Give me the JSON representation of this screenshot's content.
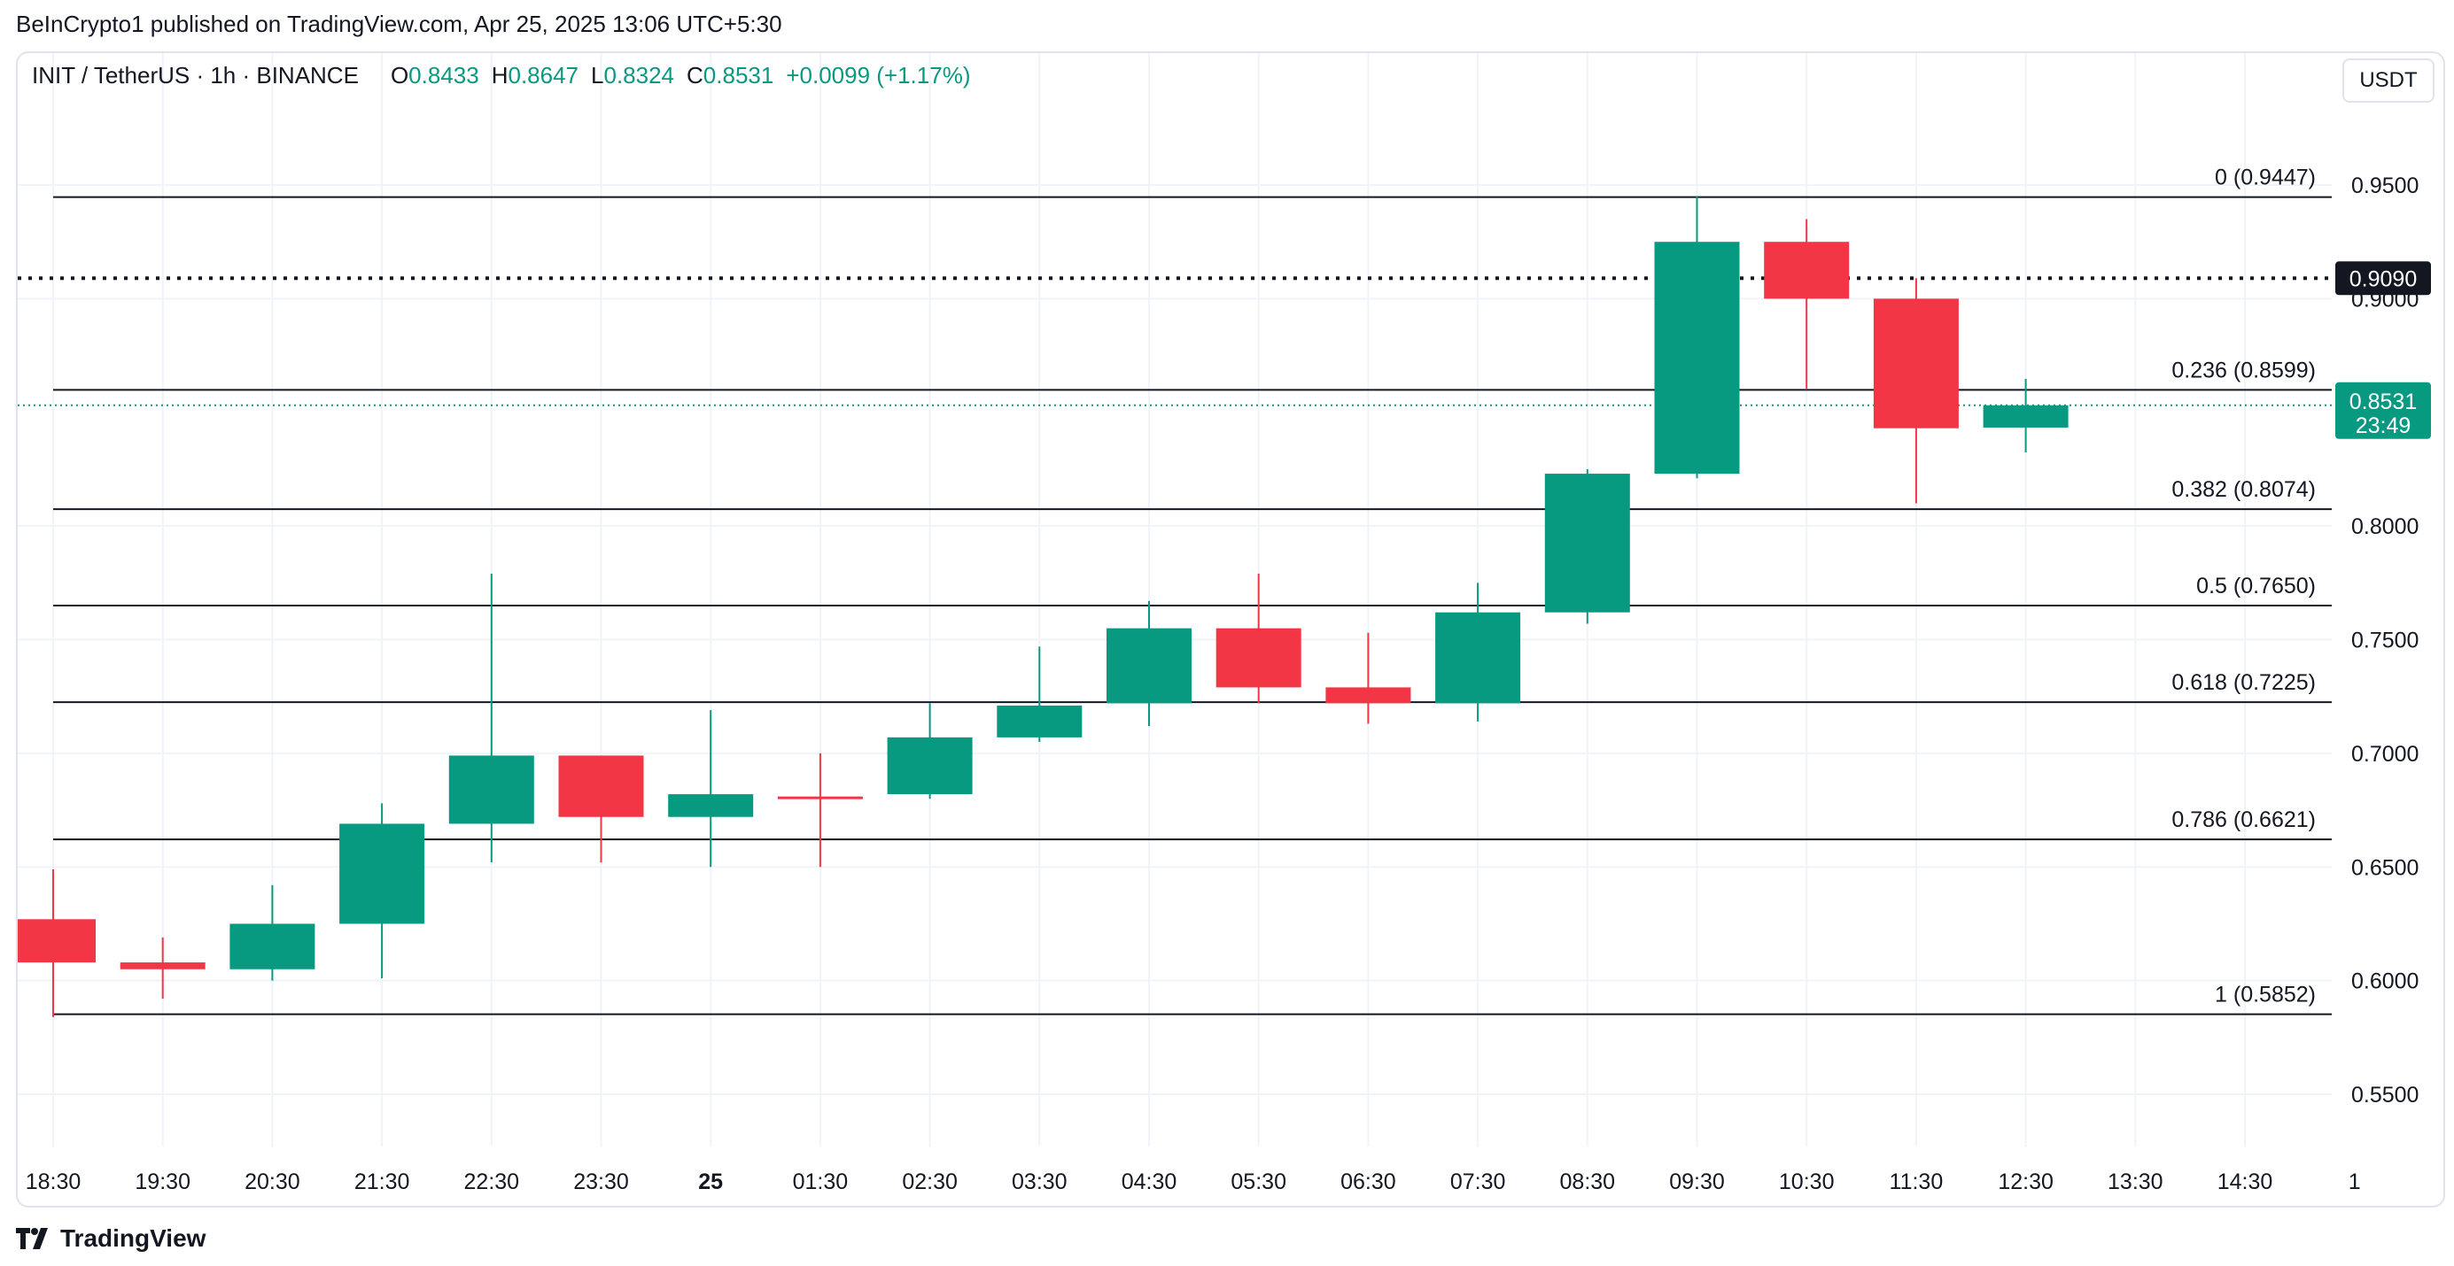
{
  "header": {
    "published": "BeInCrypto1 published on TradingView.com, Apr 25, 2025 13:06 UTC+5:30"
  },
  "legend": {
    "symbol": "INIT / TetherUS · 1h · BINANCE",
    "open_label": "O",
    "open": "0.8433",
    "high_label": "H",
    "high": "0.8647",
    "low_label": "L",
    "low": "0.8324",
    "close_label": "C",
    "close": "0.8531",
    "change": "+0.0099 (+1.17%)"
  },
  "currency_button": "USDT",
  "logo_text": "TradingView",
  "colors": {
    "up": "#089981",
    "down": "#f23645",
    "fib": "#131722",
    "grid": "#f0f3fa"
  },
  "chart_data": {
    "type": "candlestick",
    "yrange": [
      0.52,
      0.98
    ],
    "y_ticks": [
      "0.9500",
      "0.9000",
      "0.8000",
      "0.7500",
      "0.7000",
      "0.6500",
      "0.6000",
      "0.5500"
    ],
    "x_ticks": [
      "18:30",
      "19:30",
      "20:30",
      "21:30",
      "22:30",
      "23:30",
      "25",
      "01:30",
      "02:30",
      "03:30",
      "04:30",
      "05:30",
      "06:30",
      "07:30",
      "08:30",
      "09:30",
      "10:30",
      "11:30",
      "12:30",
      "13:30",
      "14:30",
      "1"
    ],
    "candles": [
      {
        "x": "18:30",
        "open": 0.627,
        "high": 0.649,
        "low": 0.584,
        "close": 0.608
      },
      {
        "x": "19:30",
        "open": 0.608,
        "high": 0.619,
        "low": 0.592,
        "close": 0.605
      },
      {
        "x": "20:30",
        "open": 0.605,
        "high": 0.642,
        "low": 0.6,
        "close": 0.625
      },
      {
        "x": "21:30",
        "open": 0.625,
        "high": 0.678,
        "low": 0.601,
        "close": 0.669
      },
      {
        "x": "22:30",
        "open": 0.669,
        "high": 0.779,
        "low": 0.652,
        "close": 0.699
      },
      {
        "x": "23:30",
        "open": 0.699,
        "high": 0.699,
        "low": 0.652,
        "close": 0.672
      },
      {
        "x": "25",
        "open": 0.672,
        "high": 0.719,
        "low": 0.65,
        "close": 0.682
      },
      {
        "x": "01:30",
        "open": 0.681,
        "high": 0.7,
        "low": 0.65,
        "close": 0.68
      },
      {
        "x": "02:30",
        "open": 0.682,
        "high": 0.722,
        "low": 0.68,
        "close": 0.707
      },
      {
        "x": "03:30",
        "open": 0.707,
        "high": 0.747,
        "low": 0.705,
        "close": 0.721
      },
      {
        "x": "04:30",
        "open": 0.722,
        "high": 0.767,
        "low": 0.712,
        "close": 0.755
      },
      {
        "x": "05:30",
        "open": 0.755,
        "high": 0.779,
        "low": 0.722,
        "close": 0.729
      },
      {
        "x": "06:30",
        "open": 0.729,
        "high": 0.753,
        "low": 0.713,
        "close": 0.722
      },
      {
        "x": "07:30",
        "open": 0.722,
        "high": 0.775,
        "low": 0.714,
        "close": 0.762
      },
      {
        "x": "08:30",
        "open": 0.762,
        "high": 0.825,
        "low": 0.757,
        "close": 0.823
      },
      {
        "x": "09:30",
        "open": 0.823,
        "high": 0.945,
        "low": 0.821,
        "close": 0.925
      },
      {
        "x": "10:30",
        "open": 0.925,
        "high": 0.935,
        "low": 0.86,
        "close": 0.9
      },
      {
        "x": "11:30",
        "open": 0.9,
        "high": 0.909,
        "low": 0.81,
        "close": 0.843
      },
      {
        "x": "12:30",
        "open": 0.8433,
        "high": 0.8647,
        "low": 0.8324,
        "close": 0.8531
      }
    ],
    "fib_levels": [
      {
        "label": "0 (0.9447)",
        "value": 0.9447
      },
      {
        "label": "0.236 (0.8599)",
        "value": 0.8599
      },
      {
        "label": "0.382 (0.8074)",
        "value": 0.8074
      },
      {
        "label": "0.5 (0.7650)",
        "value": 0.765
      },
      {
        "label": "0.618 (0.7225)",
        "value": 0.7225
      },
      {
        "label": "0.786 (0.6621)",
        "value": 0.6621
      },
      {
        "label": "1 (0.5852)",
        "value": 0.5852
      }
    ],
    "dotted_level": {
      "label": "0.9090",
      "value": 0.909
    },
    "last_price": {
      "label": "0.8531",
      "countdown": "23:49",
      "value": 0.8531
    }
  }
}
